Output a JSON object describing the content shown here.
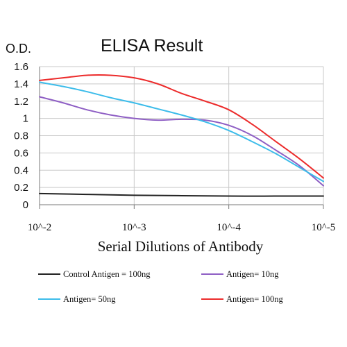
{
  "chart_data": {
    "type": "line",
    "title": "ELISA Result",
    "ylabel": "O.D.",
    "xlabel": "Serial Dilutions of Antibody",
    "ylim": [
      0,
      1.6
    ],
    "yticks": [
      "0",
      "0.2",
      "0.4",
      "0.6",
      "0.8",
      "1",
      "1.2",
      "1.4",
      "1.6"
    ],
    "xticks": [
      "10^-2",
      "10^-3",
      "10^-4",
      "10^-5"
    ],
    "x_scale": "log (dilution factor)",
    "grid": true,
    "legend_position": "bottom",
    "series": [
      {
        "name": "Control Antigen = 100ng",
        "color": "#222222",
        "x": [
          0,
          0.5,
          1,
          1.5,
          2,
          2.5,
          3
        ],
        "values": [
          0.13,
          0.12,
          0.11,
          0.105,
          0.1,
          0.1,
          0.1
        ]
      },
      {
        "name": "Antigen= 10ng",
        "color": "#8e5ec4",
        "x": [
          0,
          0.25,
          0.5,
          0.75,
          1,
          1.25,
          1.5,
          1.75,
          2,
          2.25,
          2.5,
          2.75,
          3
        ],
        "values": [
          1.25,
          1.18,
          1.1,
          1.04,
          1.0,
          0.98,
          0.99,
          0.98,
          0.92,
          0.8,
          0.63,
          0.45,
          0.22
        ]
      },
      {
        "name": "Antigen= 50ng",
        "color": "#3cbcea",
        "x": [
          0,
          0.25,
          0.5,
          0.75,
          1,
          1.25,
          1.5,
          1.75,
          2,
          2.25,
          2.5,
          2.75,
          3
        ],
        "values": [
          1.42,
          1.37,
          1.31,
          1.24,
          1.18,
          1.11,
          1.04,
          0.96,
          0.86,
          0.73,
          0.59,
          0.43,
          0.27
        ]
      },
      {
        "name": "Antigen= 100ng",
        "color": "#ec2b2b",
        "x": [
          0,
          0.25,
          0.5,
          0.75,
          1,
          1.25,
          1.5,
          1.75,
          2,
          2.25,
          2.5,
          2.75,
          3
        ],
        "values": [
          1.44,
          1.47,
          1.5,
          1.5,
          1.47,
          1.4,
          1.29,
          1.2,
          1.1,
          0.93,
          0.73,
          0.53,
          0.31
        ]
      }
    ]
  }
}
